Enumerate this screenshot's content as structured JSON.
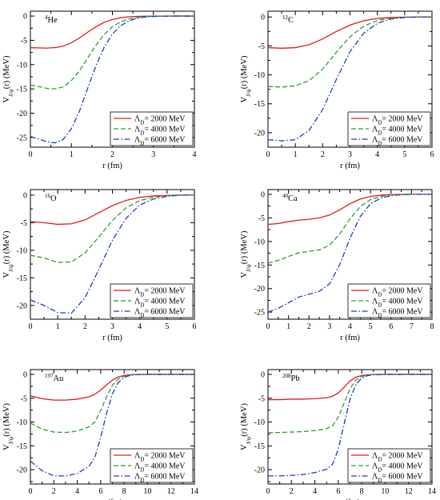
{
  "chart_data": [
    {
      "type": "line",
      "nucleus": {
        "mass": "4",
        "symbol": "He"
      },
      "xlim": [
        0,
        4
      ],
      "ylim": [
        -27,
        1
      ],
      "xticks": [
        0,
        1,
        2,
        3,
        4
      ],
      "yticks": [
        0,
        -5,
        -10,
        -15,
        -20,
        -25
      ],
      "xlabel": "r  (fm)",
      "ylabel": "V_{J/ψ}(r)  (MeV)",
      "series": [
        {
          "name": "Λ_D= 2000 MeV",
          "color": "#e41a1c",
          "dash": "solid",
          "x": [
            0,
            0.2,
            0.4,
            0.6,
            0.8,
            1.0,
            1.2,
            1.4,
            1.6,
            1.8,
            2.0,
            2.2,
            2.4,
            2.6,
            2.8,
            3.0,
            3.5,
            4.0
          ],
          "y": [
            -6.5,
            -6.55,
            -6.6,
            -6.5,
            -6.2,
            -5.5,
            -4.5,
            -3.3,
            -2.2,
            -1.3,
            -0.7,
            -0.35,
            -0.15,
            -0.07,
            -0.03,
            -0.01,
            0,
            0
          ]
        },
        {
          "name": "Λ_D= 4000 MeV",
          "color": "#2ca02c",
          "dash": "dash",
          "x": [
            0,
            0.2,
            0.4,
            0.6,
            0.8,
            1.0,
            1.2,
            1.4,
            1.6,
            1.8,
            2.0,
            2.2,
            2.4,
            2.6,
            2.8,
            3.0,
            3.5,
            4.0
          ],
          "y": [
            -14.2,
            -14.5,
            -14.9,
            -15.0,
            -14.6,
            -13.3,
            -11.2,
            -8.6,
            -6.0,
            -3.8,
            -2.2,
            -1.2,
            -0.6,
            -0.3,
            -0.12,
            -0.05,
            0,
            0
          ]
        },
        {
          "name": "Λ_D= 6000 MeV",
          "color": "#1f3fbf",
          "dash": "dashdot",
          "x": [
            0,
            0.2,
            0.4,
            0.6,
            0.8,
            1.0,
            1.2,
            1.4,
            1.6,
            1.8,
            2.0,
            2.2,
            2.4,
            2.6,
            2.8,
            3.0,
            3.5,
            4.0
          ],
          "y": [
            -24.8,
            -25.3,
            -25.9,
            -26.1,
            -25.4,
            -23.2,
            -19.5,
            -14.8,
            -10.2,
            -6.4,
            -3.7,
            -2.0,
            -1.0,
            -0.45,
            -0.2,
            -0.08,
            0,
            0
          ]
        }
      ],
      "legend": "lower-right"
    },
    {
      "type": "line",
      "nucleus": {
        "mass": "12",
        "symbol": "C"
      },
      "xlim": [
        0,
        6
      ],
      "ylim": [
        -22.5,
        1
      ],
      "xticks": [
        0,
        1,
        2,
        3,
        4,
        5,
        6
      ],
      "yticks": [
        0,
        -5,
        -10,
        -15,
        -20
      ],
      "xlabel": "r  (fm)",
      "ylabel": "V_{J/ψ}(r)  (MeV)",
      "series": [
        {
          "name": "Λ_D= 2000 MeV",
          "color": "#e41a1c",
          "dash": "solid",
          "x": [
            0,
            0.5,
            1.0,
            1.5,
            2.0,
            2.5,
            3.0,
            3.5,
            4.0,
            4.5,
            5.0,
            5.5,
            6.0
          ],
          "y": [
            -5.3,
            -5.4,
            -5.3,
            -4.8,
            -3.8,
            -2.5,
            -1.4,
            -0.65,
            -0.25,
            -0.08,
            -0.02,
            0,
            0
          ]
        },
        {
          "name": "Λ_D= 4000 MeV",
          "color": "#2ca02c",
          "dash": "dash",
          "x": [
            0,
            0.5,
            1.0,
            1.5,
            2.0,
            2.5,
            3.0,
            3.5,
            4.0,
            4.5,
            5.0,
            5.5,
            6.0
          ],
          "y": [
            -12.0,
            -12.1,
            -11.9,
            -11.0,
            -9.0,
            -6.1,
            -3.4,
            -1.6,
            -0.6,
            -0.2,
            -0.05,
            0,
            0
          ]
        },
        {
          "name": "Λ_D= 6000 MeV",
          "color": "#1f3fbf",
          "dash": "dashdot",
          "x": [
            0,
            0.5,
            1.0,
            1.5,
            2.0,
            2.5,
            3.0,
            3.5,
            4.0,
            4.5,
            5.0,
            5.5,
            6.0
          ],
          "y": [
            -21.2,
            -21.4,
            -21.2,
            -19.6,
            -16.0,
            -10.8,
            -6.0,
            -2.8,
            -1.1,
            -0.35,
            -0.1,
            0,
            0
          ]
        }
      ],
      "legend": "lower-right"
    },
    {
      "type": "line",
      "nucleus": {
        "mass": "16",
        "symbol": "O"
      },
      "xlim": [
        0,
        6
      ],
      "ylim": [
        -22.5,
        1
      ],
      "xticks": [
        0,
        1,
        2,
        3,
        4,
        5,
        6
      ],
      "yticks": [
        0,
        -5,
        -10,
        -15,
        -20
      ],
      "xlabel": "r  (fm)",
      "ylabel": "V_{J/ψ}(r)  (MeV)",
      "series": [
        {
          "name": "Λ_D= 2000 MeV",
          "color": "#e41a1c",
          "dash": "solid",
          "x": [
            0,
            0.5,
            1.0,
            1.5,
            2.0,
            2.5,
            3.0,
            3.5,
            4.0,
            4.5,
            5.0,
            5.5,
            6.0
          ],
          "y": [
            -4.8,
            -5.0,
            -5.3,
            -5.2,
            -4.5,
            -3.2,
            -1.9,
            -0.95,
            -0.4,
            -0.15,
            -0.05,
            0,
            0
          ]
        },
        {
          "name": "Λ_D= 4000 MeV",
          "color": "#2ca02c",
          "dash": "dash",
          "x": [
            0,
            0.5,
            1.0,
            1.5,
            2.0,
            2.5,
            3.0,
            3.5,
            4.0,
            4.5,
            5.0,
            5.5,
            6.0
          ],
          "y": [
            -10.9,
            -11.4,
            -12.2,
            -12.1,
            -10.5,
            -7.6,
            -4.6,
            -2.3,
            -1.0,
            -0.38,
            -0.12,
            0,
            0
          ]
        },
        {
          "name": "Λ_D= 6000 MeV",
          "color": "#1f3fbf",
          "dash": "dashdot",
          "x": [
            0,
            0.5,
            1.0,
            1.5,
            2.0,
            2.5,
            3.0,
            3.5,
            4.0,
            4.5,
            5.0,
            5.5,
            6.0
          ],
          "y": [
            -19.0,
            -20.0,
            -21.3,
            -21.4,
            -18.6,
            -13.5,
            -8.2,
            -4.2,
            -1.8,
            -0.7,
            -0.22,
            0,
            0
          ]
        }
      ],
      "legend": "lower-right"
    },
    {
      "type": "line",
      "nucleus": {
        "mass": "40",
        "symbol": "Ca"
      },
      "xlim": [
        0,
        8
      ],
      "ylim": [
        -26.5,
        1
      ],
      "xticks": [
        0,
        1,
        2,
        3,
        4,
        5,
        6,
        7,
        8
      ],
      "yticks": [
        0,
        -5,
        -10,
        -15,
        -20,
        -25
      ],
      "xlabel": "r  (fm)",
      "ylabel": "V_{J/ψ}(r)  (MeV)",
      "series": [
        {
          "name": "Λ_D= 2000 MeV",
          "color": "#e41a1c",
          "dash": "solid",
          "x": [
            0,
            0.5,
            1.0,
            1.5,
            2.0,
            2.5,
            3.0,
            3.5,
            4.0,
            4.5,
            5.0,
            5.5,
            6.0,
            6.5,
            7.0,
            8.0
          ],
          "y": [
            -6.4,
            -6.2,
            -5.8,
            -5.5,
            -5.3,
            -5.0,
            -4.4,
            -3.3,
            -2.0,
            -1.0,
            -0.45,
            -0.18,
            -0.07,
            -0.02,
            0,
            0
          ]
        },
        {
          "name": "Λ_D= 4000 MeV",
          "color": "#2ca02c",
          "dash": "dash",
          "x": [
            0,
            0.5,
            1.0,
            1.5,
            2.0,
            2.5,
            3.0,
            3.5,
            4.0,
            4.5,
            5.0,
            5.5,
            6.0,
            6.5,
            7.0,
            8.0
          ],
          "y": [
            -14.6,
            -14.0,
            -13.2,
            -12.4,
            -12.1,
            -11.8,
            -10.8,
            -8.4,
            -5.2,
            -2.6,
            -1.1,
            -0.45,
            -0.15,
            -0.05,
            0,
            0
          ]
        },
        {
          "name": "Λ_D= 6000 MeV",
          "color": "#1f3fbf",
          "dash": "dashdot",
          "x": [
            0,
            0.5,
            1.0,
            1.5,
            2.0,
            2.5,
            3.0,
            3.5,
            4.0,
            4.5,
            5.0,
            5.5,
            6.0,
            6.5,
            7.0,
            8.0
          ],
          "y": [
            -25.0,
            -24.2,
            -23.0,
            -21.8,
            -21.2,
            -20.6,
            -19.0,
            -14.9,
            -9.3,
            -4.7,
            -2.0,
            -0.8,
            -0.28,
            -0.09,
            0,
            0
          ]
        }
      ],
      "legend": "lower-right"
    },
    {
      "type": "line",
      "nucleus": {
        "mass": "197",
        "symbol": "Au"
      },
      "xlim": [
        0,
        14
      ],
      "ylim": [
        -23,
        1
      ],
      "xticks": [
        0,
        2,
        4,
        6,
        8,
        10,
        12,
        14
      ],
      "yticks": [
        0,
        -5,
        -10,
        -15,
        -20
      ],
      "xlabel": "r  (fm)",
      "ylabel": "V_{J/ψ}(r)  (MeV)",
      "series": [
        {
          "name": "Λ_D= 2000 MeV",
          "color": "#e41a1c",
          "dash": "solid",
          "x": [
            0,
            1,
            2,
            3,
            4,
            5,
            5.5,
            6,
            6.5,
            7,
            7.5,
            8,
            8.5,
            9,
            10,
            11,
            12,
            14
          ],
          "y": [
            -4.5,
            -5.1,
            -5.4,
            -5.4,
            -5.2,
            -4.7,
            -4.2,
            -3.3,
            -2.2,
            -1.2,
            -0.55,
            -0.22,
            -0.08,
            -0.03,
            0,
            0,
            0,
            0
          ]
        },
        {
          "name": "Λ_D= 4000 MeV",
          "color": "#2ca02c",
          "dash": "dash",
          "x": [
            0,
            1,
            2,
            3,
            4,
            5,
            5.5,
            6,
            6.5,
            7,
            7.5,
            8,
            8.5,
            9,
            10,
            11,
            12,
            14
          ],
          "y": [
            -10.2,
            -11.5,
            -12.1,
            -12.2,
            -11.9,
            -11.0,
            -10.0,
            -7.6,
            -4.7,
            -2.3,
            -0.95,
            -0.38,
            -0.13,
            -0.04,
            0,
            0,
            0,
            0
          ]
        },
        {
          "name": "Λ_D= 6000 MeV",
          "color": "#1f3fbf",
          "dash": "dashdot",
          "x": [
            0,
            1,
            2,
            3,
            4,
            5,
            5.5,
            6,
            6.5,
            7,
            7.5,
            8,
            8.5,
            9,
            10,
            11,
            12,
            14
          ],
          "y": [
            -18.2,
            -20.2,
            -21.3,
            -21.3,
            -20.8,
            -19.3,
            -17.4,
            -13.2,
            -8.2,
            -4.1,
            -1.7,
            -0.65,
            -0.22,
            -0.07,
            0,
            0,
            0,
            0
          ]
        }
      ],
      "legend": "lower-right"
    },
    {
      "type": "line",
      "nucleus": {
        "mass": "208",
        "symbol": "Pb"
      },
      "xlim": [
        0,
        14
      ],
      "ylim": [
        -23,
        1
      ],
      "xticks": [
        0,
        2,
        4,
        6,
        8,
        10,
        12,
        14
      ],
      "yticks": [
        0,
        -5,
        -10,
        -15,
        -20
      ],
      "xlabel": "r  (fm)",
      "ylabel": "V_{J/ψ}(r)  (MeV)",
      "series": [
        {
          "name": "Λ_D= 2000 MeV",
          "color": "#e41a1c",
          "dash": "solid",
          "x": [
            0,
            1,
            2,
            3,
            4,
            5,
            5.5,
            6,
            6.5,
            7,
            7.5,
            8,
            8.5,
            9,
            10,
            11,
            12,
            14
          ],
          "y": [
            -5.3,
            -5.3,
            -5.2,
            -5.2,
            -5.1,
            -4.9,
            -4.6,
            -3.9,
            -2.7,
            -1.4,
            -0.6,
            -0.24,
            -0.09,
            -0.03,
            0,
            0,
            0,
            0
          ]
        },
        {
          "name": "Λ_D= 4000 MeV",
          "color": "#2ca02c",
          "dash": "dash",
          "x": [
            0,
            1,
            2,
            3,
            4,
            5,
            5.5,
            6,
            6.5,
            7,
            7.5,
            8,
            8.5,
            9,
            10,
            11,
            12,
            14
          ],
          "y": [
            -12.2,
            -12.2,
            -12.1,
            -12.0,
            -11.8,
            -11.4,
            -10.8,
            -9.0,
            -6.0,
            -3.0,
            -1.2,
            -0.45,
            -0.15,
            -0.05,
            0,
            0,
            0,
            0
          ]
        },
        {
          "name": "Λ_D= 6000 MeV",
          "color": "#1f3fbf",
          "dash": "dashdot",
          "x": [
            0,
            1,
            2,
            3,
            4,
            5,
            5.5,
            6,
            6.5,
            7,
            7.5,
            8,
            8.5,
            9,
            10,
            11,
            12,
            14
          ],
          "y": [
            -21.3,
            -21.3,
            -21.2,
            -21.0,
            -20.6,
            -19.9,
            -18.9,
            -15.7,
            -10.4,
            -5.2,
            -2.1,
            -0.8,
            -0.27,
            -0.08,
            0,
            0,
            0,
            0
          ]
        }
      ],
      "legend": "lower-right"
    }
  ]
}
